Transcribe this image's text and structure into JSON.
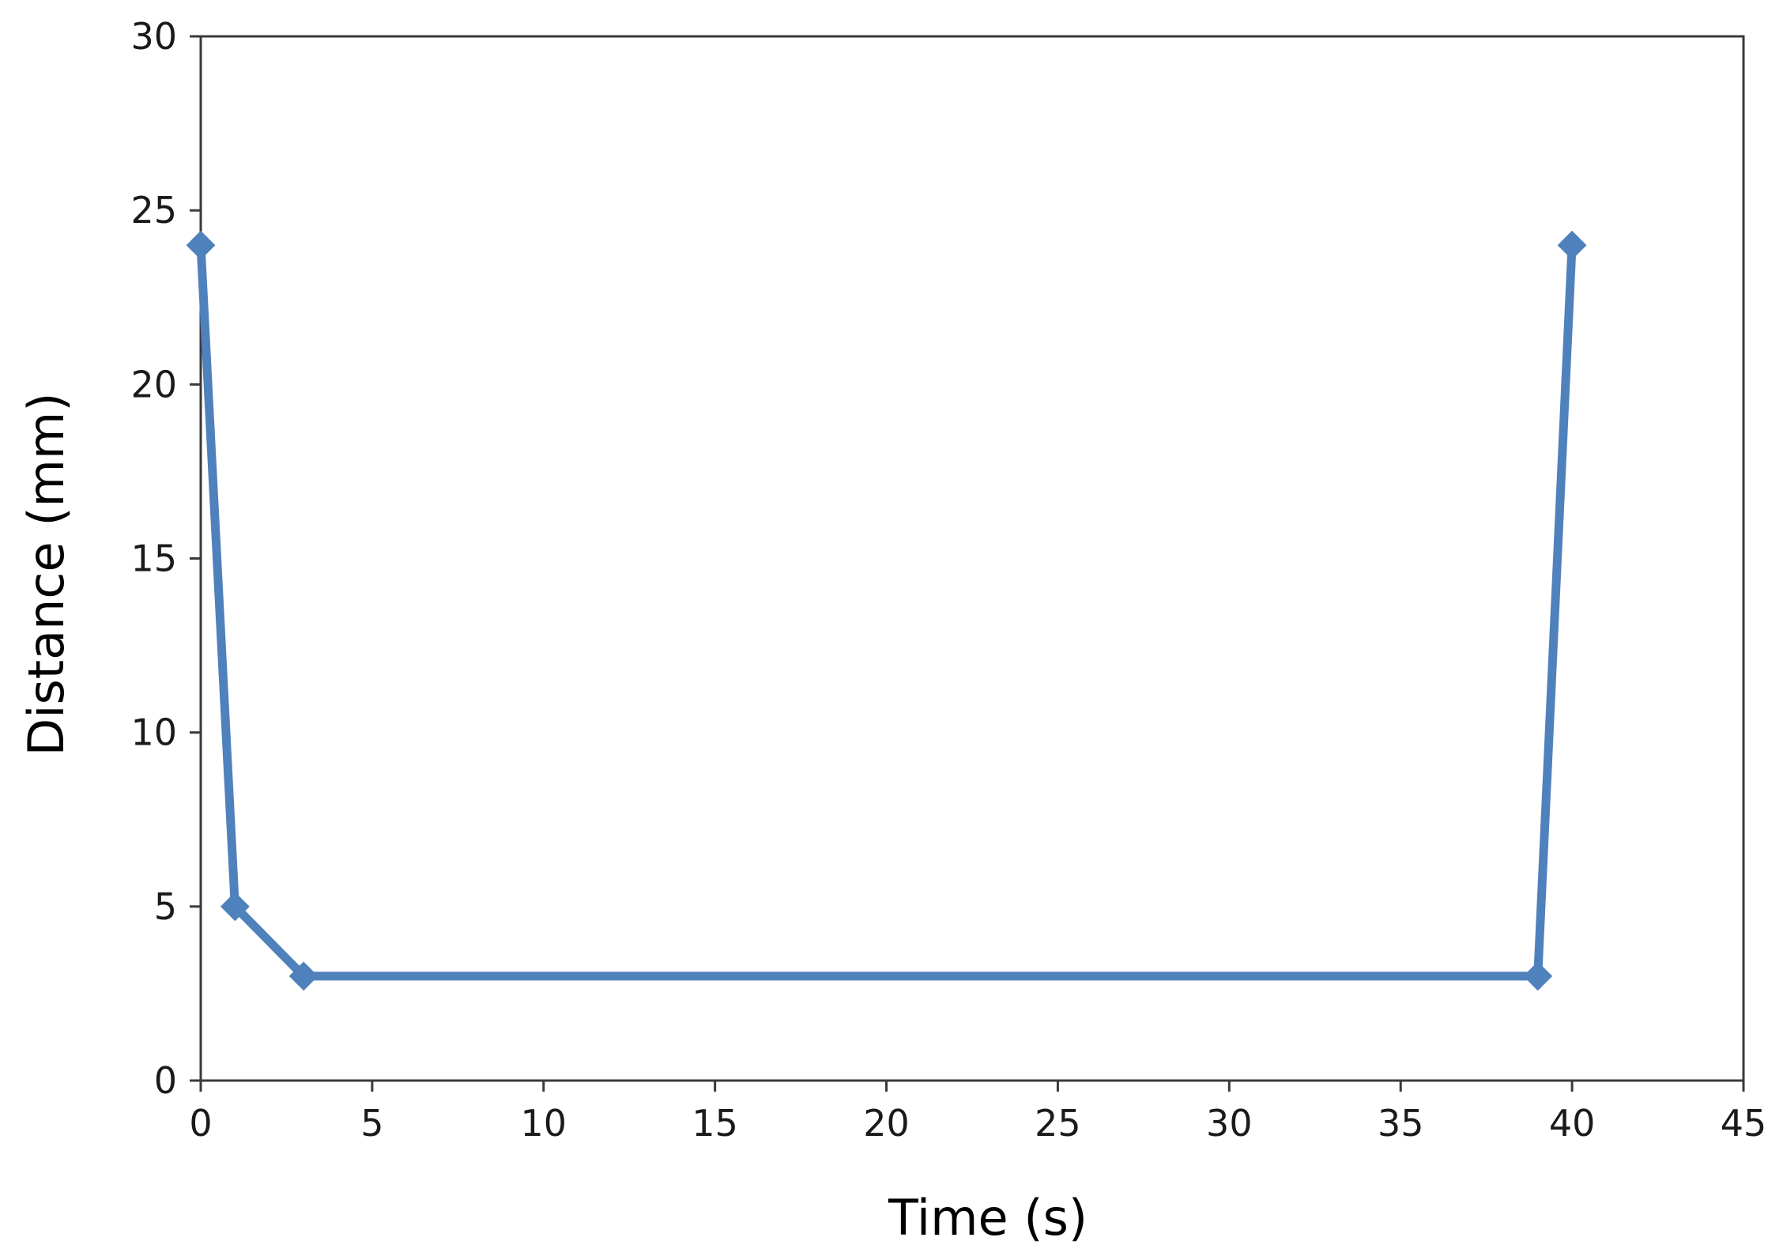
{
  "chart_data": {
    "type": "line",
    "title": "",
    "xlabel": "Time (s)",
    "ylabel": "Distance (mm)",
    "xlim": [
      0,
      45
    ],
    "ylim": [
      0,
      30
    ],
    "xticks": [
      0,
      5,
      10,
      15,
      20,
      25,
      30,
      35,
      40,
      45
    ],
    "yticks": [
      0,
      5,
      10,
      15,
      20,
      25,
      30
    ],
    "grid": false,
    "legend": "none",
    "series": [
      {
        "color": "#4f81bd",
        "marker": "diamond",
        "x": [
          0,
          1,
          3,
          39,
          40
        ],
        "y": [
          24,
          5,
          3,
          3,
          24
        ]
      }
    ]
  }
}
